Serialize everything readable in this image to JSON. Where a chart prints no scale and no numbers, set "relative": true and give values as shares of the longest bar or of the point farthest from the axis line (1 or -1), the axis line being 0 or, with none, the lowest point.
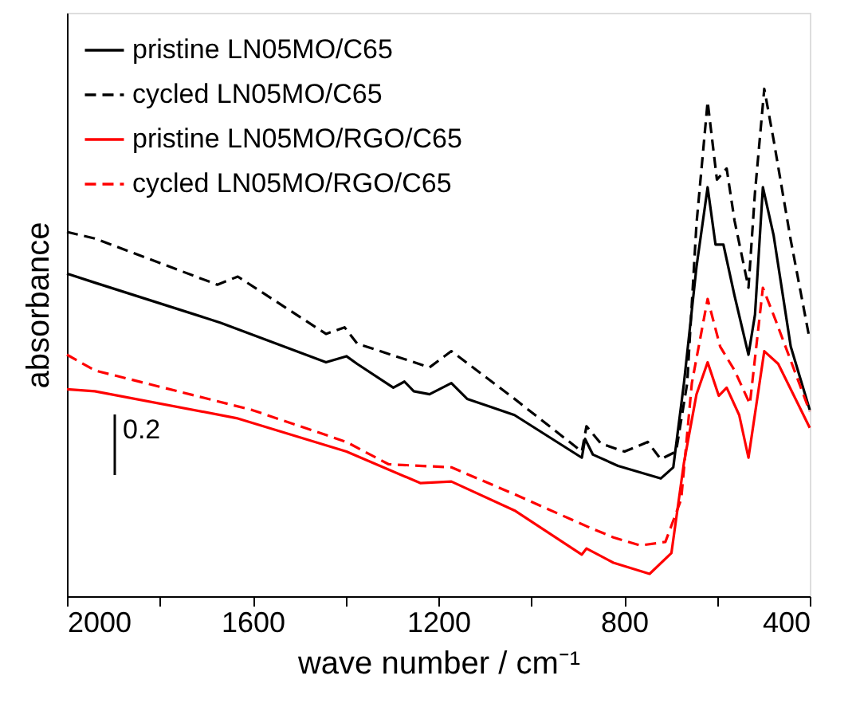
{
  "chart_data": {
    "type": "line",
    "relative": true,
    "xlabel": "wave number / cm⁻¹",
    "ylabel": "absorbance",
    "xlim": [
      2000,
      400
    ],
    "xticks": [
      2000,
      {
        "value": 1800,
        "label": null
      },
      1600,
      {
        "value": 1400,
        "label": null
      },
      1200,
      {
        "value": 1000,
        "label": null
      },
      800,
      {
        "value": 600,
        "label": null
      },
      400
    ],
    "tick_labels": "x",
    "grid": false,
    "legend": "top left",
    "marker": "none",
    "annotations": [
      "0.2"
    ],
    "series": [
      {
        "name": "pristine LN05MO/C65",
        "color": "#000000",
        "line_style": "solid",
        "x": [
          2000,
          1940,
          1669,
          1442,
          1398,
          1375,
          1297,
          1273,
          1253,
          1219,
          1172,
          1138,
          1036,
          891,
          884,
          867,
          813,
          721,
          694,
          671,
          644,
          620,
          603,
          586,
          562,
          532,
          518,
          501,
          478,
          441,
          400
        ],
        "values": [
          0.636,
          0.618,
          0.539,
          0.461,
          0.473,
          0.458,
          0.411,
          0.423,
          0.404,
          0.398,
          0.42,
          0.389,
          0.357,
          0.273,
          0.31,
          0.279,
          0.257,
          0.232,
          0.254,
          0.42,
          0.649,
          0.806,
          0.693,
          0.693,
          0.592,
          0.476,
          0.555,
          0.806,
          0.712,
          0.492,
          0.367
        ]
      },
      {
        "name": "cycled LN05MO/C65",
        "color": "#000000",
        "line_style": "dashed",
        "x": [
          2000,
          1940,
          1676,
          1632,
          1442,
          1402,
          1375,
          1219,
          1172,
          1036,
          891,
          881,
          850,
          799,
          749,
          721,
          688,
          664,
          644,
          620,
          600,
          579,
          562,
          532,
          518,
          498,
          478,
          441,
          400
        ],
        "values": [
          0.718,
          0.705,
          0.614,
          0.63,
          0.517,
          0.53,
          0.498,
          0.451,
          0.483,
          0.389,
          0.285,
          0.335,
          0.301,
          0.285,
          0.304,
          0.27,
          0.285,
          0.42,
          0.734,
          0.975,
          0.821,
          0.843,
          0.74,
          0.608,
          0.796,
          1.0,
          0.9,
          0.702,
          0.505
        ]
      },
      {
        "name": "pristine LN05MO/RGO/C65",
        "color": "#ff0000",
        "line_style": "solid",
        "x": [
          2000,
          1940,
          1635,
          1398,
          1239,
          1172,
          1036,
          891,
          881,
          823,
          745,
          698,
          671,
          644,
          620,
          596,
          579,
          552,
          532,
          498,
          468,
          400
        ],
        "values": [
          0.408,
          0.404,
          0.351,
          0.285,
          0.223,
          0.226,
          0.169,
          0.082,
          0.094,
          0.066,
          0.044,
          0.085,
          0.263,
          0.398,
          0.461,
          0.395,
          0.411,
          0.357,
          0.273,
          0.483,
          0.458,
          0.332
        ]
      },
      {
        "name": "cycled LN05MO/RGO/C65",
        "color": "#ff0000",
        "line_style": "dashed",
        "x": [
          2000,
          1940,
          1601,
          1398,
          1307,
          1172,
          1036,
          881,
          823,
          765,
          711,
          677,
          654,
          620,
          593,
          562,
          529,
          501,
          474,
          400
        ],
        "values": [
          0.476,
          0.445,
          0.367,
          0.304,
          0.26,
          0.254,
          0.201,
          0.138,
          0.116,
          0.1,
          0.107,
          0.191,
          0.42,
          0.586,
          0.492,
          0.445,
          0.379,
          0.608,
          0.545,
          0.364
        ]
      }
    ]
  }
}
